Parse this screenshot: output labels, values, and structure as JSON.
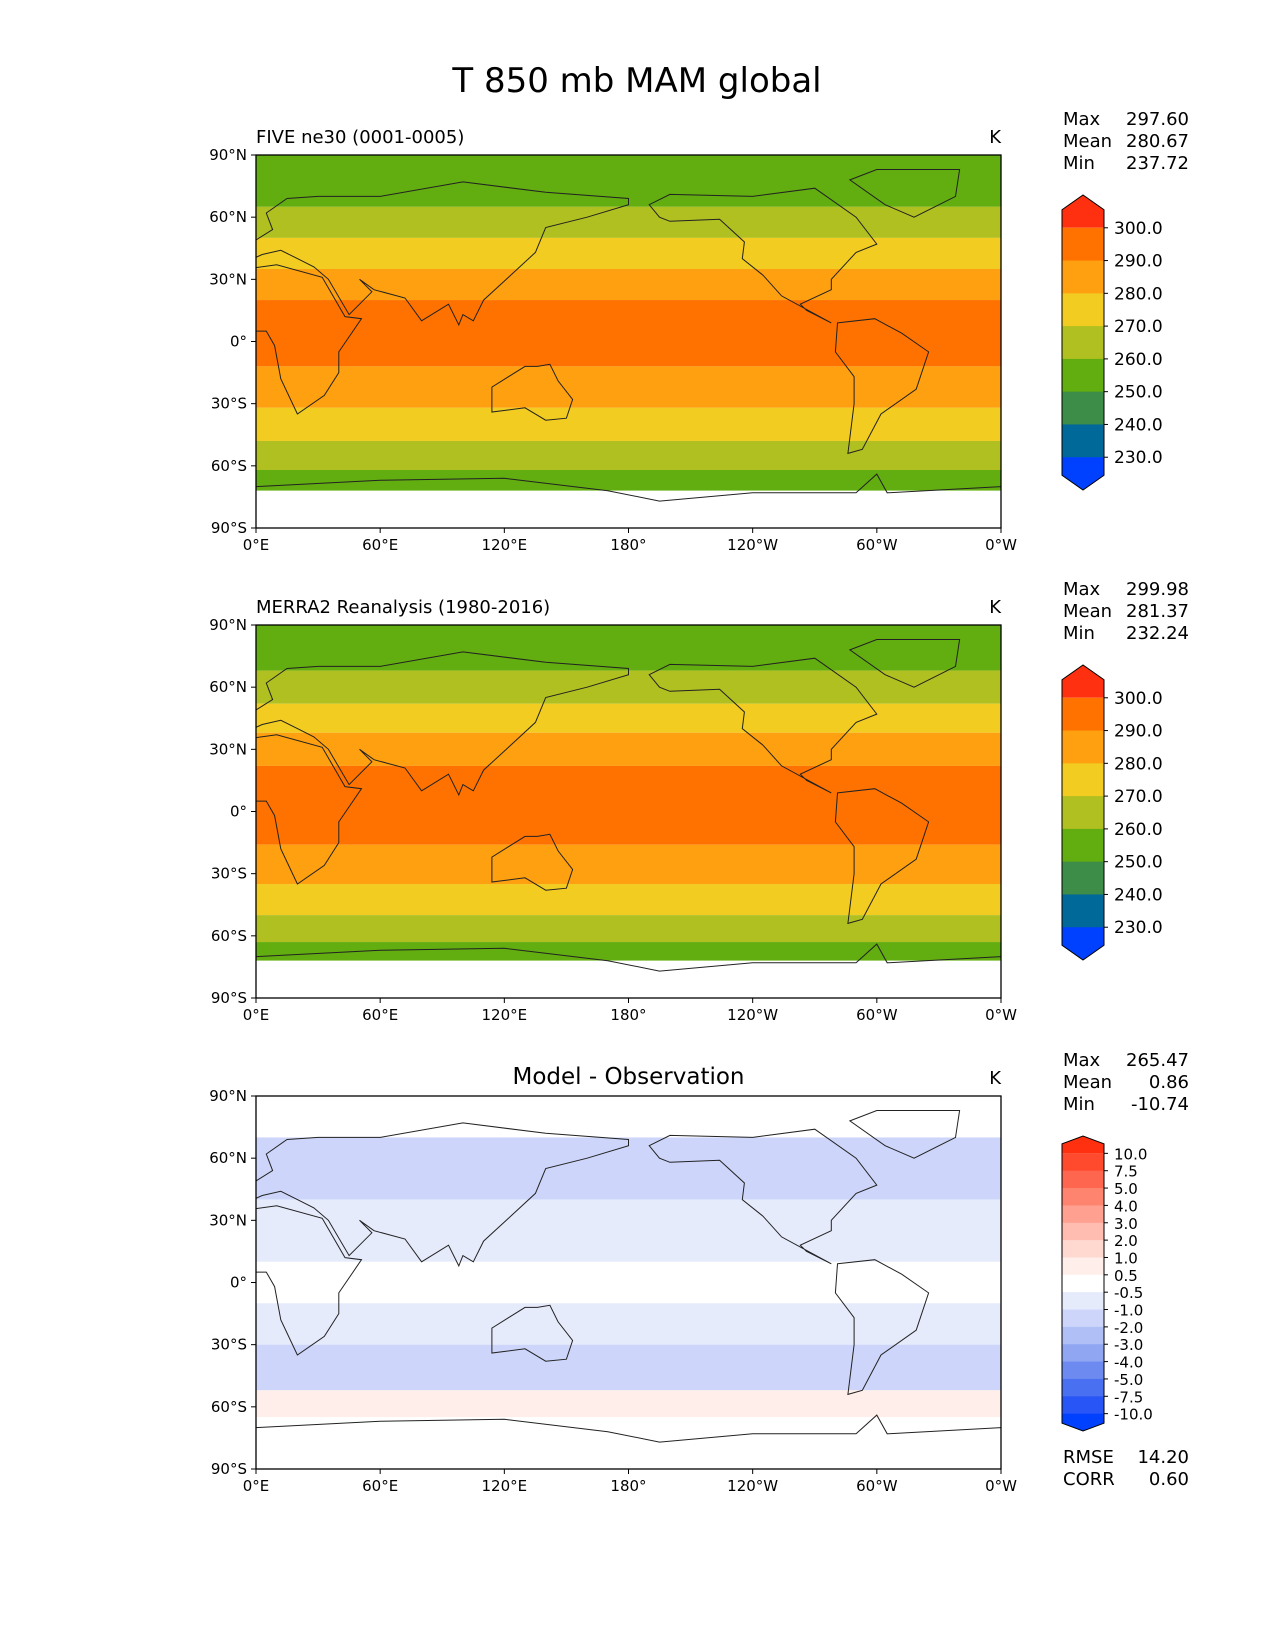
{
  "title": "T 850 mb MAM global",
  "chart_data": [
    {
      "type": "heatmap",
      "panel_title": "FIVE ne30 (0001-0005)",
      "units": "K",
      "stats": {
        "Max": "297.60",
        "Mean": "280.67",
        "Min": "237.72"
      },
      "x_ticks": [
        "0°E",
        "60°E",
        "120°E",
        "180°",
        "120°W",
        "60°W",
        "0°W"
      ],
      "y_ticks": [
        "90°N",
        "60°N",
        "30°N",
        "0°",
        "30°S",
        "60°S",
        "90°S"
      ],
      "colorbar": {
        "labels": [
          "300.0",
          "290.0",
          "280.0",
          "270.0",
          "260.0",
          "250.0",
          "240.0",
          "230.0"
        ],
        "colors": [
          "#ff3010",
          "#ff7200",
          "#ffa010",
          "#f2cc20",
          "#b0c020",
          "#62ad10",
          "#3d8c48",
          "#00699a",
          "#0040ff"
        ]
      },
      "bands": [
        {
          "lat_min": 65,
          "lat_max": 90,
          "color": "#62ad10"
        },
        {
          "lat_min": 50,
          "lat_max": 65,
          "color": "#b0c020"
        },
        {
          "lat_min": 35,
          "lat_max": 50,
          "color": "#f2cc20"
        },
        {
          "lat_min": 20,
          "lat_max": 35,
          "color": "#ffa010"
        },
        {
          "lat_min": -12,
          "lat_max": 20,
          "color": "#ff7200"
        },
        {
          "lat_min": -32,
          "lat_max": -12,
          "color": "#ffa010"
        },
        {
          "lat_min": -48,
          "lat_max": -32,
          "color": "#f2cc20"
        },
        {
          "lat_min": -62,
          "lat_max": -48,
          "color": "#b0c020"
        },
        {
          "lat_min": -72,
          "lat_max": -62,
          "color": "#62ad10"
        },
        {
          "lat_min": -90,
          "lat_max": -72,
          "color": "#ffffff"
        }
      ]
    },
    {
      "type": "heatmap",
      "panel_title": "MERRA2 Reanalysis (1980-2016)",
      "units": "K",
      "stats": {
        "Max": "299.98",
        "Mean": "281.37",
        "Min": "232.24"
      },
      "x_ticks": [
        "0°E",
        "60°E",
        "120°E",
        "180°",
        "120°W",
        "60°W",
        "0°W"
      ],
      "y_ticks": [
        "90°N",
        "60°N",
        "30°N",
        "0°",
        "30°S",
        "60°S",
        "90°S"
      ],
      "colorbar": {
        "labels": [
          "300.0",
          "290.0",
          "280.0",
          "270.0",
          "260.0",
          "250.0",
          "240.0",
          "230.0"
        ],
        "colors": [
          "#ff3010",
          "#ff7200",
          "#ffa010",
          "#f2cc20",
          "#b0c020",
          "#62ad10",
          "#3d8c48",
          "#00699a",
          "#0040ff"
        ]
      },
      "bands": [
        {
          "lat_min": 68,
          "lat_max": 90,
          "color": "#62ad10"
        },
        {
          "lat_min": 52,
          "lat_max": 68,
          "color": "#b0c020"
        },
        {
          "lat_min": 38,
          "lat_max": 52,
          "color": "#f2cc20"
        },
        {
          "lat_min": 22,
          "lat_max": 38,
          "color": "#ffa010"
        },
        {
          "lat_min": -16,
          "lat_max": 22,
          "color": "#ff7200"
        },
        {
          "lat_min": -35,
          "lat_max": -16,
          "color": "#ffa010"
        },
        {
          "lat_min": -50,
          "lat_max": -35,
          "color": "#f2cc20"
        },
        {
          "lat_min": -63,
          "lat_max": -50,
          "color": "#b0c020"
        },
        {
          "lat_min": -72,
          "lat_max": -63,
          "color": "#62ad10"
        },
        {
          "lat_min": -90,
          "lat_max": -72,
          "color": "#ffffff"
        }
      ]
    },
    {
      "type": "heatmap",
      "panel_title": "Model - Observation",
      "units": "K",
      "stats": {
        "Max": "265.47",
        "Mean": "0.86",
        "Min": "-10.74"
      },
      "extra_stats": {
        "RMSE": "14.20",
        "CORR": "0.60"
      },
      "x_ticks": [
        "0°E",
        "60°E",
        "120°E",
        "180°",
        "120°W",
        "60°W",
        "0°W"
      ],
      "y_ticks": [
        "90°N",
        "60°N",
        "30°N",
        "0°",
        "30°S",
        "60°S",
        "90°S"
      ],
      "colorbar": {
        "labels": [
          "10.0",
          "7.5",
          "5.0",
          "4.0",
          "3.0",
          "2.0",
          "1.0",
          "0.5",
          "-0.5",
          "-1.0",
          "-2.0",
          "-3.0",
          "-4.0",
          "-5.0",
          "-7.5",
          "-10.0"
        ],
        "colors": [
          "#ff3010",
          "#ff4a2e",
          "#ff6650",
          "#ff8470",
          "#ffa090",
          "#ffbcb0",
          "#ffd8d0",
          "#ffeeea",
          "#ffffff",
          "#e6ebfc",
          "#cdd6fa",
          "#b0c0f6",
          "#90a6f2",
          "#6c8af0",
          "#4a70f2",
          "#2856f6",
          "#0040ff"
        ]
      },
      "bands": [
        {
          "lat_min": 70,
          "lat_max": 90,
          "color": "#ffffff"
        },
        {
          "lat_min": 40,
          "lat_max": 70,
          "color": "#cdd6fa"
        },
        {
          "lat_min": 10,
          "lat_max": 40,
          "color": "#e6ebfc"
        },
        {
          "lat_min": -10,
          "lat_max": 10,
          "color": "#ffffff"
        },
        {
          "lat_min": -30,
          "lat_max": -10,
          "color": "#e6ebfc"
        },
        {
          "lat_min": -52,
          "lat_max": -30,
          "color": "#cdd6fa"
        },
        {
          "lat_min": -65,
          "lat_max": -52,
          "color": "#ffeeea"
        },
        {
          "lat_min": -75,
          "lat_max": -65,
          "color": "#ffffff"
        },
        {
          "lat_min": -90,
          "lat_max": -75,
          "color": "#ffffff"
        }
      ]
    }
  ]
}
